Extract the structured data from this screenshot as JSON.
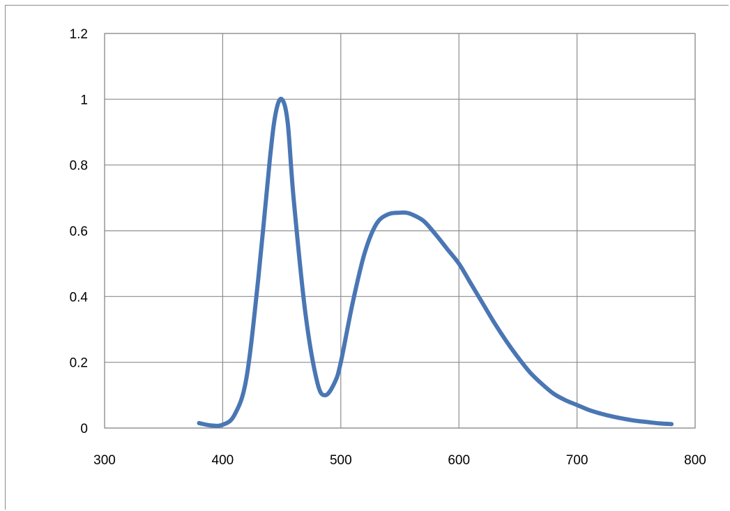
{
  "chart_data": {
    "type": "line",
    "title": "",
    "xlabel": "",
    "ylabel": "",
    "xlim": [
      300,
      800
    ],
    "ylim": [
      0,
      1.2
    ],
    "x_ticks": [
      300,
      400,
      500,
      600,
      700,
      800
    ],
    "y_ticks": [
      0,
      0.2,
      0.4,
      0.6,
      0.8,
      1,
      1.2
    ],
    "x_tick_labels": [
      "300",
      "400",
      "500",
      "600",
      "700",
      "800"
    ],
    "y_tick_labels": [
      "0",
      "0.2",
      "0.4",
      "0.6",
      "0.8",
      "1",
      "1.2"
    ],
    "grid": true,
    "legend": "none",
    "series": [
      {
        "color": "#4a76b4",
        "x": [
          380,
          390,
          400,
          410,
          420,
          430,
          440,
          445,
          450,
          455,
          460,
          470,
          480,
          487,
          495,
          500,
          510,
          520,
          530,
          540,
          550,
          555,
          560,
          570,
          580,
          590,
          600,
          610,
          620,
          630,
          640,
          650,
          660,
          670,
          680,
          690,
          700,
          710,
          720,
          730,
          740,
          750,
          760,
          770,
          780
        ],
        "y": [
          0.015,
          0.008,
          0.01,
          0.04,
          0.15,
          0.45,
          0.82,
          0.96,
          1.0,
          0.93,
          0.7,
          0.35,
          0.14,
          0.1,
          0.14,
          0.2,
          0.38,
          0.53,
          0.62,
          0.65,
          0.655,
          0.655,
          0.65,
          0.63,
          0.59,
          0.545,
          0.5,
          0.44,
          0.38,
          0.32,
          0.265,
          0.215,
          0.17,
          0.135,
          0.105,
          0.085,
          0.07,
          0.055,
          0.044,
          0.035,
          0.028,
          0.022,
          0.018,
          0.014,
          0.012
        ]
      }
    ]
  }
}
